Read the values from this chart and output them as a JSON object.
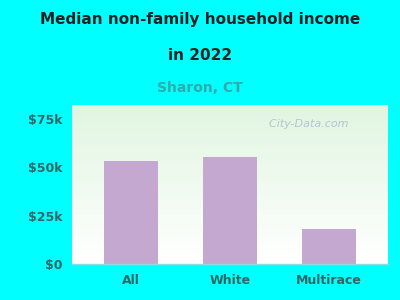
{
  "categories": [
    "All",
    "White",
    "Multirace"
  ],
  "values": [
    53000,
    55000,
    18000
  ],
  "bar_color": "#C4A8D0",
  "title_line1": "Median non-family household income",
  "title_line2": "in 2022",
  "subtitle": "Sharon, CT",
  "subtitle_color": "#33AAAA",
  "title_color": "#222222",
  "background_color": "#00FFFF",
  "yticks": [
    0,
    25000,
    50000,
    75000
  ],
  "ytick_labels": [
    "$0",
    "$25k",
    "$50k",
    "$75k"
  ],
  "ylim": [
    0,
    82000
  ],
  "watermark": "  City-Data.com",
  "watermark_color": "#AABBCC",
  "axis_label_color": "#336666",
  "plot_left_color": "#D8EDD0",
  "plot_right_color": "#F8FFF8"
}
